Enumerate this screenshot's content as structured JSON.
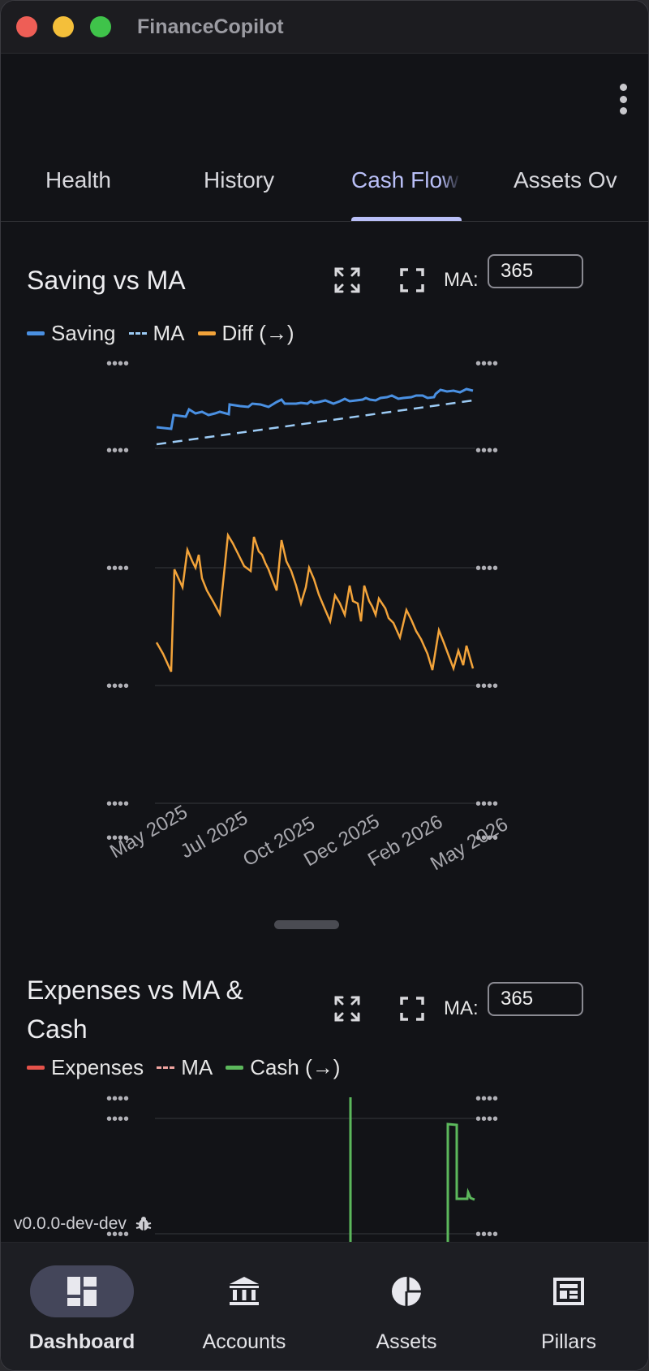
{
  "app": {
    "title": "FinanceCopilot"
  },
  "tabs": [
    {
      "label": "Health",
      "active": false
    },
    {
      "label": "History",
      "active": false
    },
    {
      "label": "Cash Flow",
      "active": true
    },
    {
      "label": "Assets Ov",
      "active": false
    }
  ],
  "cards": {
    "saving": {
      "title": "Saving vs MA",
      "ma_label": "MA:",
      "ma_value": "365",
      "legend": [
        {
          "label": "Saving",
          "color": "#4a90e2",
          "style": "solid"
        },
        {
          "label": "MA",
          "color": "#9ccbf5",
          "style": "dashed"
        },
        {
          "label": "Diff (→)",
          "color": "#f2a33a",
          "style": "solid"
        }
      ],
      "x_ticks": [
        "May 2025",
        "Jul 2025",
        "Oct 2025",
        "Dec 2025",
        "Feb 2026",
        "May 2026"
      ],
      "y_tick_text": "••••"
    },
    "expenses": {
      "title_line1": "Expenses vs MA &",
      "title_line2": "Cash",
      "ma_label": "MA:",
      "ma_value": "365",
      "legend": [
        {
          "label": "Expenses",
          "color": "#e5524a",
          "style": "solid"
        },
        {
          "label": "MA",
          "color": "#f0a4a0",
          "style": "dashed"
        },
        {
          "label": "Cash (→)",
          "color": "#5cb85c",
          "style": "solid"
        }
      ],
      "y_tick_text": "••••"
    }
  },
  "chart_data": [
    {
      "type": "line",
      "title": "Saving vs MA",
      "x_range": [
        "May 2025",
        "May 2026"
      ],
      "values_hidden": true,
      "series": [
        {
          "name": "Saving",
          "color": "#4a90e2"
        },
        {
          "name": "MA",
          "color": "#9ccbf5"
        },
        {
          "name": "Diff (→)",
          "color": "#f2a33a"
        }
      ]
    },
    {
      "type": "line",
      "title": "Expenses vs MA & Cash",
      "values_hidden": true,
      "series": [
        {
          "name": "Expenses",
          "color": "#e5524a"
        },
        {
          "name": "MA",
          "color": "#f0a4a0"
        },
        {
          "name": "Cash (→)",
          "color": "#5cb85c"
        }
      ]
    }
  ],
  "version": {
    "label": "v0.0.0-dev-dev"
  },
  "bottom_nav": [
    {
      "label": "Dashboard",
      "icon": "dashboard-icon",
      "active": true
    },
    {
      "label": "Accounts",
      "icon": "bank-icon",
      "active": false
    },
    {
      "label": "Assets",
      "icon": "pie-chart-icon",
      "active": false
    },
    {
      "label": "Pillars",
      "icon": "pillars-icon",
      "active": false
    }
  ]
}
